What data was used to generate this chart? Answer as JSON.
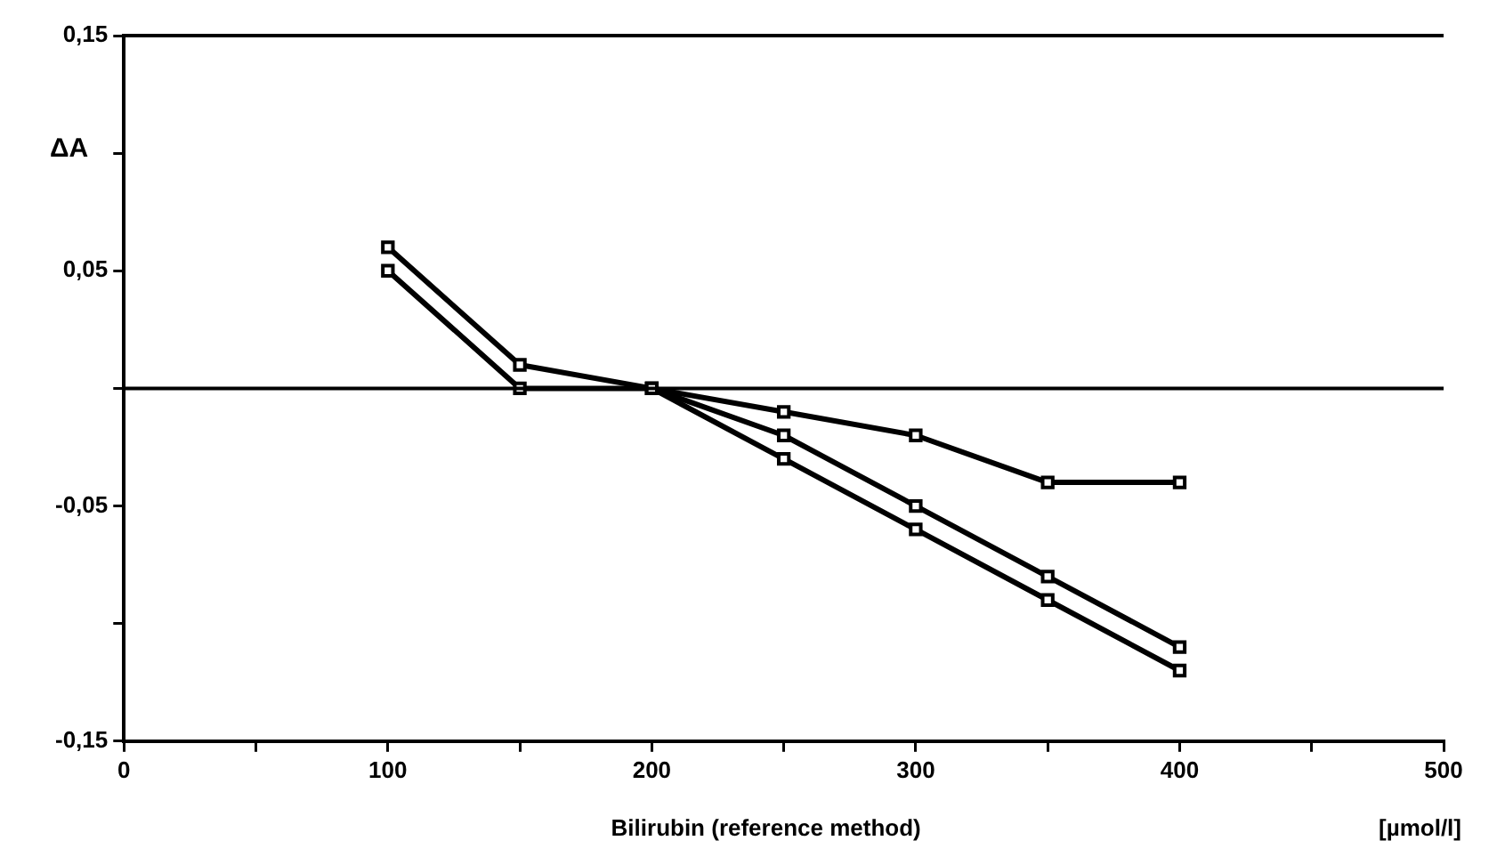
{
  "chart_data": {
    "type": "line",
    "xlabel": "Bilirubin (reference method)",
    "ylabel": "ΔA",
    "annotations": [
      "[µmol/l]"
    ],
    "x": [
      100,
      150,
      200,
      250,
      300,
      350,
      400
    ],
    "series": [
      {
        "color": "#000000",
        "values": [
          0.06,
          0.01,
          0,
          -0.02,
          -0.05,
          -0.08,
          -0.11
        ]
      },
      {
        "color": "#000000",
        "values": [
          0.05,
          0,
          0,
          -0.03,
          -0.06,
          -0.09,
          -0.12
        ]
      },
      {
        "color": "#000000",
        "values": [
          null,
          null,
          0,
          -0.01,
          -0.02,
          -0.04,
          -0.04
        ]
      }
    ],
    "xlim": [
      0,
      500
    ],
    "xticks": [
      0,
      {
        "value": 50,
        "label": null
      },
      100,
      {
        "value": 150,
        "label": null
      },
      200,
      {
        "value": 250,
        "label": null
      },
      300,
      {
        "value": 350,
        "label": null
      },
      400,
      {
        "value": 450,
        "label": null
      },
      500
    ],
    "ylim": [
      -0.15,
      0.15
    ],
    "yticks": [
      {
        "value": -0.15,
        "label": "-0,15"
      },
      {
        "value": -0.1,
        "label": null
      },
      {
        "value": -0.05,
        "label": "-0,05"
      },
      {
        "value": 0,
        "label": null
      },
      {
        "value": 0.05,
        "label": "0,05"
      },
      {
        "value": 0.1,
        "label": null
      },
      {
        "value": 0.15,
        "label": "0,15"
      }
    ],
    "ref_lines": [
      {
        "axis": "y",
        "value": 0,
        "color": "#000000"
      }
    ],
    "grid": false,
    "legend": false,
    "marker": "square",
    "line_style": "solid"
  }
}
